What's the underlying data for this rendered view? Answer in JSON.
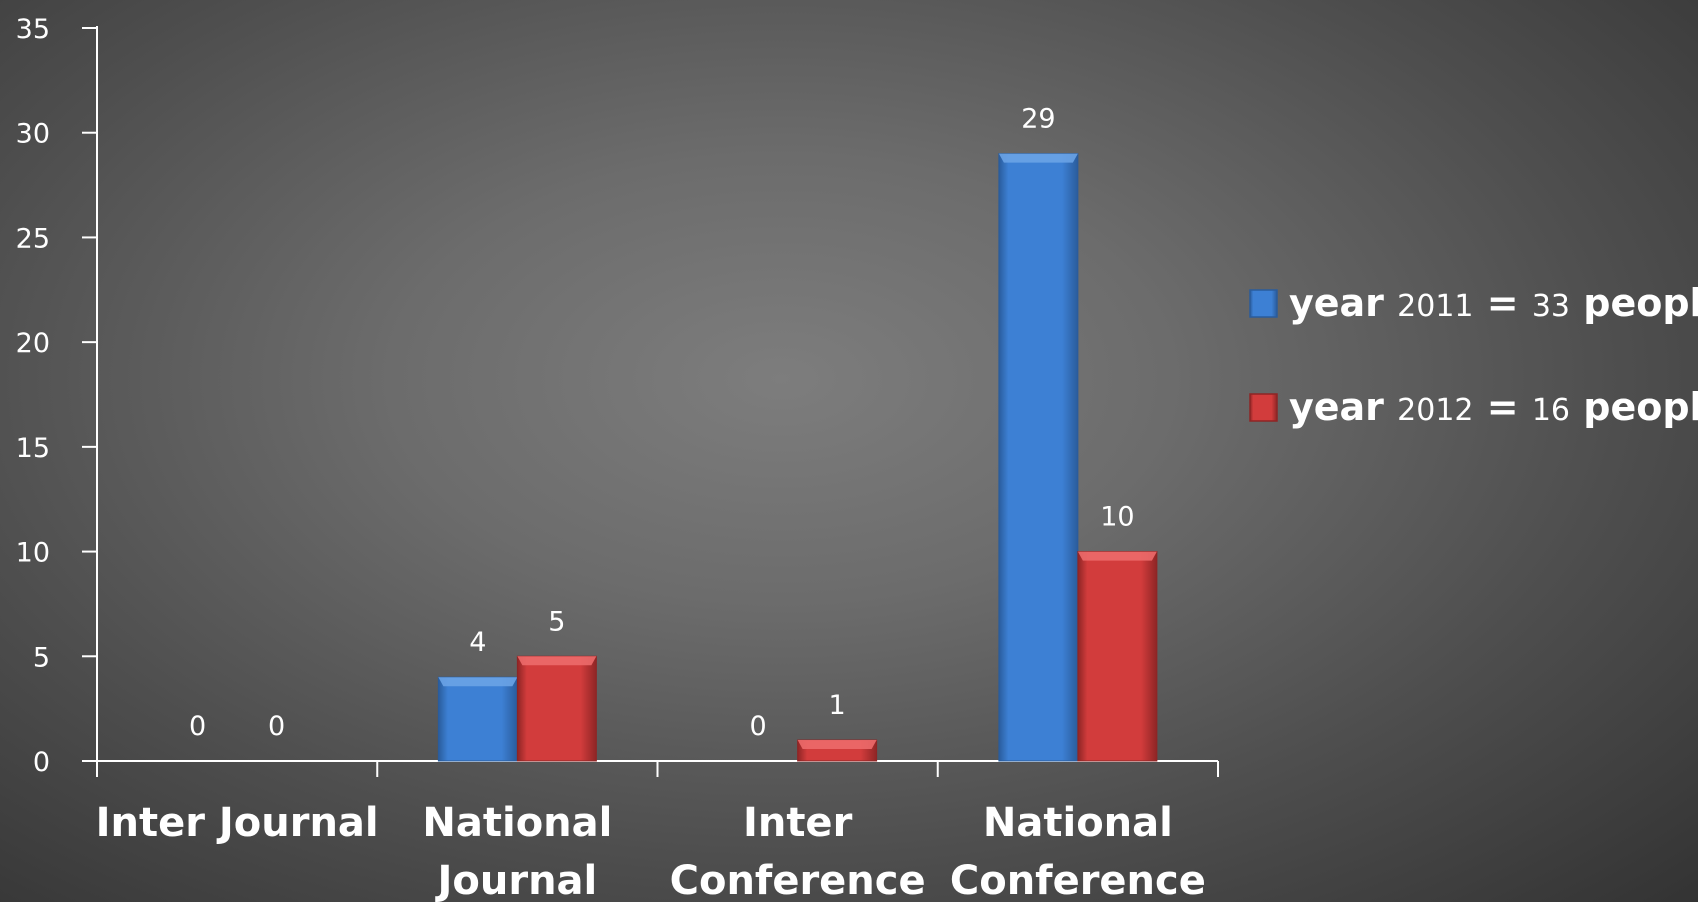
{
  "chart_data": {
    "type": "bar",
    "title": "",
    "xlabel": "",
    "ylabel": "",
    "categories": [
      [
        "Inter Journal"
      ],
      [
        "National",
        "Journal"
      ],
      [
        "Inter",
        "Conference"
      ],
      [
        "National",
        "Conference"
      ]
    ],
    "series": [
      {
        "legend": {
          "word1": "year",
          "year": "2011",
          "eq": "=",
          "count": "33",
          "word2": "people"
        },
        "values": [
          0,
          4,
          0,
          29
        ],
        "color": "#3d80d4",
        "dark": "#2a5c9c",
        "light": "#6aa3e6"
      },
      {
        "legend": {
          "word1": "year",
          "year": "2012",
          "eq": "=",
          "count": "16",
          "word2": "people"
        },
        "values": [
          0,
          5,
          1,
          10
        ],
        "color": "#d23c3c",
        "dark": "#8e2525",
        "light": "#ec6a6a"
      }
    ],
    "ylim": [
      0,
      35
    ],
    "yticks": [
      0,
      5,
      10,
      15,
      20,
      25,
      30,
      35
    ],
    "grid": false,
    "legend_position": "right"
  }
}
